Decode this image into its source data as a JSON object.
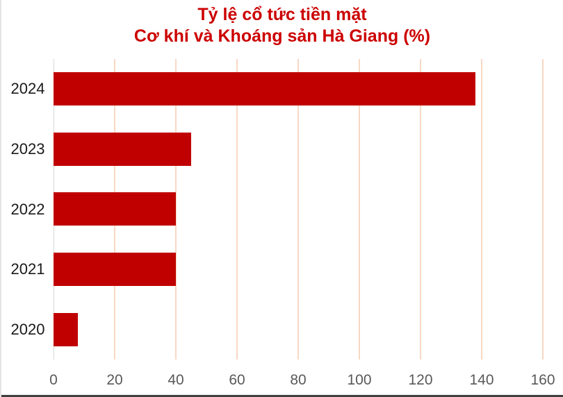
{
  "title": {
    "line1": "Tỷ lệ cổ tức tiền mặt",
    "line2": "Cơ khí và Khoáng sản Hà Giang (%)"
  },
  "chart_data": {
    "type": "bar",
    "orientation": "horizontal",
    "title": "Tỷ lệ cổ tức tiền mặt Cơ khí và Khoáng sản Hà Giang (%)",
    "categories": [
      "2024",
      "2023",
      "2022",
      "2021",
      "2020"
    ],
    "values": [
      138,
      45,
      40,
      40,
      8
    ],
    "xlabel": "",
    "ylabel": "",
    "xlim": [
      0,
      160
    ],
    "xticks": [
      0,
      20,
      40,
      60,
      80,
      100,
      120,
      140,
      160
    ],
    "grid": true,
    "legend": false,
    "colors": {
      "bar": "#C00000",
      "title": "#CC0000",
      "tick_label": "#595959",
      "category_label": "#1A1A1A",
      "gridline": "#F8D8C4",
      "axis_line": "#D9D9D9"
    }
  }
}
